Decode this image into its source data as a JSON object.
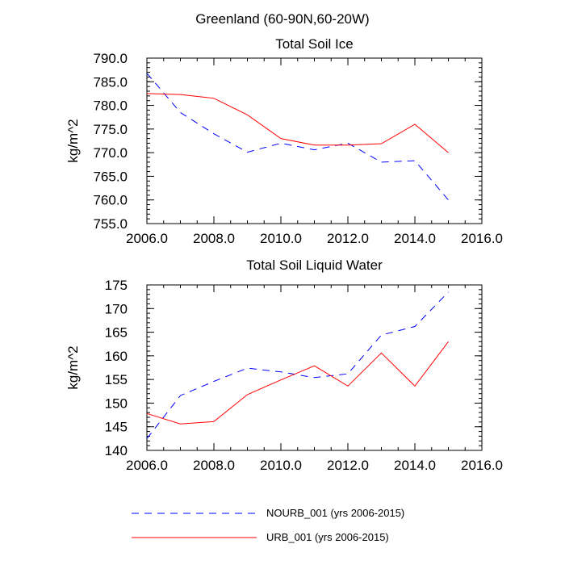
{
  "figure_title": "Greenland (60-90N,60-20W)",
  "legend": [
    {
      "name": "NOURB_001 (yrs 2006-2015)",
      "color": "#0000ff",
      "dash": "dashed"
    },
    {
      "name": "URB_001 (yrs 2006-2015)",
      "color": "#ff0000",
      "dash": "solid"
    }
  ],
  "chart_data": [
    {
      "type": "line",
      "title": "Total Soil Ice",
      "xlabel": "",
      "ylabel": "kg/m^2",
      "xlim": [
        2006,
        2016
      ],
      "ylim": [
        755,
        790
      ],
      "xticks": [
        2006,
        2008,
        2010,
        2012,
        2014,
        2016
      ],
      "xtick_labels": [
        "2006.0",
        "2008.0",
        "2010.0",
        "2012.0",
        "2014.0",
        "2016.0"
      ],
      "yticks": [
        755,
        760,
        765,
        770,
        775,
        780,
        785,
        790
      ],
      "ytick_labels": [
        "755.0",
        "760.0",
        "765.0",
        "770.0",
        "775.0",
        "780.0",
        "785.0",
        "790.0"
      ],
      "x": [
        2006,
        2007,
        2008,
        2009,
        2010,
        2011,
        2012,
        2013,
        2014,
        2015
      ],
      "series": [
        {
          "name": "NOURB_001 (yrs 2006-2015)",
          "color": "#0000ff",
          "dash": "dashed",
          "values": [
            786.8,
            778.5,
            774.0,
            770.1,
            772.0,
            770.6,
            772.0,
            768.0,
            768.3,
            760.0
          ]
        },
        {
          "name": "URB_001 (yrs 2006-2015)",
          "color": "#ff0000",
          "dash": "solid",
          "values": [
            782.5,
            782.3,
            781.5,
            778.0,
            773.0,
            771.6,
            771.6,
            771.9,
            776.0,
            770.0
          ]
        }
      ]
    },
    {
      "type": "line",
      "title": "Total Soil Liquid Water",
      "xlabel": "",
      "ylabel": "kg/m^2",
      "xlim": [
        2006,
        2016
      ],
      "ylim": [
        140,
        175
      ],
      "xticks": [
        2006,
        2008,
        2010,
        2012,
        2014,
        2016
      ],
      "xtick_labels": [
        "2006.0",
        "2008.0",
        "2010.0",
        "2012.0",
        "2014.0",
        "2016.0"
      ],
      "yticks": [
        140,
        145,
        150,
        155,
        160,
        165,
        170,
        175
      ],
      "ytick_labels": [
        "140",
        "145",
        "150",
        "155",
        "160",
        "165",
        "170",
        "175"
      ],
      "x": [
        2006,
        2007,
        2008,
        2009,
        2010,
        2011,
        2012,
        2013,
        2014,
        2015
      ],
      "series": [
        {
          "name": "NOURB_001 (yrs 2006-2015)",
          "color": "#0000ff",
          "dash": "dashed",
          "values": [
            142.5,
            151.6,
            154.6,
            157.4,
            156.6,
            155.4,
            156.2,
            164.4,
            166.2,
            173.5
          ]
        },
        {
          "name": "URB_001 (yrs 2006-2015)",
          "color": "#ff0000",
          "dash": "solid",
          "values": [
            147.8,
            145.6,
            146.1,
            151.8,
            154.9,
            157.9,
            153.6,
            160.6,
            153.6,
            163.0
          ]
        }
      ]
    }
  ]
}
